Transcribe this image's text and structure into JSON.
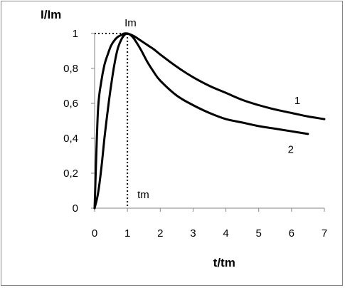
{
  "chart_data": {
    "type": "line",
    "title": "",
    "xlabel": "t/tm",
    "ylabel": "I/Im",
    "xlim": [
      0,
      7
    ],
    "ylim": [
      0,
      1
    ],
    "x_ticks": [
      "0",
      "1",
      "2",
      "3",
      "4",
      "5",
      "6",
      "7"
    ],
    "y_ticks": [
      "0",
      "0,2",
      "0,4",
      "0,6",
      "0,8",
      "1"
    ],
    "grid": false,
    "legend": "none",
    "series": [
      {
        "name": "1",
        "color": "#000000",
        "x": [
          0,
          0.1,
          0.2,
          0.3,
          0.4,
          0.5,
          0.6,
          0.7,
          0.8,
          0.9,
          1.0,
          1.2,
          1.4,
          1.6,
          1.8,
          2.0,
          2.5,
          3.0,
          3.5,
          4.0,
          4.5,
          5.0,
          5.5,
          6.0,
          6.5,
          7.0
        ],
        "y": [
          0,
          0.55,
          0.72,
          0.82,
          0.88,
          0.93,
          0.96,
          0.98,
          0.99,
          1.0,
          1.0,
          0.985,
          0.96,
          0.935,
          0.91,
          0.88,
          0.81,
          0.75,
          0.7,
          0.66,
          0.62,
          0.59,
          0.565,
          0.545,
          0.525,
          0.51
        ]
      },
      {
        "name": "2",
        "color": "#000000",
        "x": [
          0,
          0.1,
          0.2,
          0.3,
          0.4,
          0.5,
          0.6,
          0.7,
          0.8,
          0.9,
          1.0,
          1.1,
          1.2,
          1.4,
          1.6,
          1.8,
          2.0,
          2.5,
          3.0,
          3.5,
          4.0,
          4.5,
          5.0,
          5.5,
          6.0,
          6.5
        ],
        "y": [
          0,
          0.08,
          0.22,
          0.4,
          0.56,
          0.7,
          0.82,
          0.91,
          0.96,
          0.99,
          1.0,
          0.99,
          0.97,
          0.91,
          0.84,
          0.78,
          0.73,
          0.645,
          0.59,
          0.545,
          0.51,
          0.49,
          0.47,
          0.455,
          0.44,
          0.425
        ]
      }
    ],
    "annotations": [
      {
        "text": "Im",
        "x": 1.0,
        "y": 1.0
      },
      {
        "text": "tm",
        "x": 1.0,
        "y": 0.0
      }
    ],
    "curve_labels": [
      {
        "text": "1",
        "x": 6.0,
        "y": 0.62
      },
      {
        "text": "2",
        "x": 5.8,
        "y": 0.34
      }
    ],
    "reference_lines": {
      "style": "dotted",
      "at_x": 1.0,
      "at_y": 1.0
    }
  }
}
